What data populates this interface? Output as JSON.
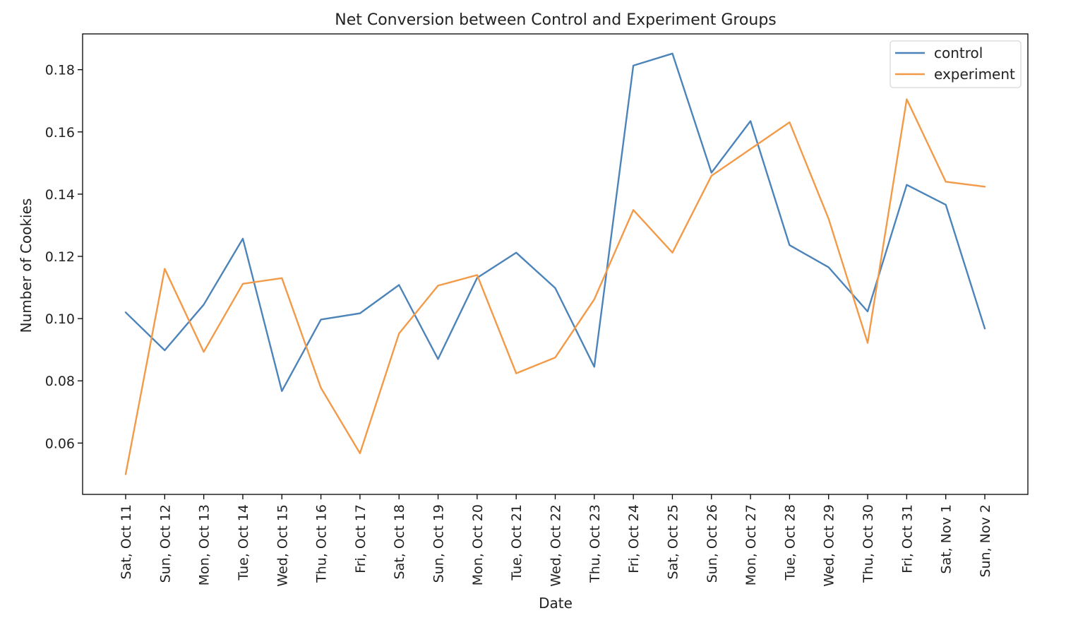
{
  "chart_data": {
    "type": "line",
    "title": "Net Conversion between Control and Experiment Groups",
    "xlabel": "Date",
    "ylabel": "Number of Cookies",
    "categories": [
      "Sat, Oct 11",
      "Sun, Oct 12",
      "Mon, Oct 13",
      "Tue, Oct 14",
      "Wed, Oct 15",
      "Thu, Oct 16",
      "Fri, Oct 17",
      "Sat, Oct 18",
      "Sun, Oct 19",
      "Mon, Oct 20",
      "Tue, Oct 21",
      "Wed, Oct 22",
      "Thu, Oct 23",
      "Fri, Oct 24",
      "Sat, Oct 25",
      "Sun, Oct 26",
      "Mon, Oct 27",
      "Tue, Oct 28",
      "Wed, Oct 29",
      "Thu, Oct 30",
      "Fri, Oct 31",
      "Sat, Nov 1",
      "Sun, Nov 2"
    ],
    "ylim": [
      0.0435,
      0.1915
    ],
    "yticks": [
      "0.06",
      "0.08",
      "0.10",
      "0.12",
      "0.14",
      "0.16",
      "0.18"
    ],
    "grid": false,
    "legend_position": "top-right",
    "series": [
      {
        "name": "control",
        "color": "#4c84ba",
        "values": [
          0.102,
          0.0898,
          0.1045,
          0.1257,
          0.0767,
          0.0997,
          0.1017,
          0.1108,
          0.087,
          0.1131,
          0.1212,
          0.1098,
          0.0845,
          0.1813,
          0.1852,
          0.1469,
          0.1635,
          0.1236,
          0.1165,
          0.1023,
          0.143,
          0.1366,
          0.0968
        ]
      },
      {
        "name": "experiment",
        "color": "#f39a48",
        "values": [
          0.05,
          0.116,
          0.0893,
          0.1112,
          0.113,
          0.0777,
          0.0567,
          0.0952,
          0.1106,
          0.114,
          0.0824,
          0.0875,
          0.1062,
          0.1349,
          0.1212,
          0.1459,
          0.1545,
          0.1631,
          0.1321,
          0.0922,
          0.1705,
          0.144,
          0.1424
        ]
      }
    ]
  }
}
